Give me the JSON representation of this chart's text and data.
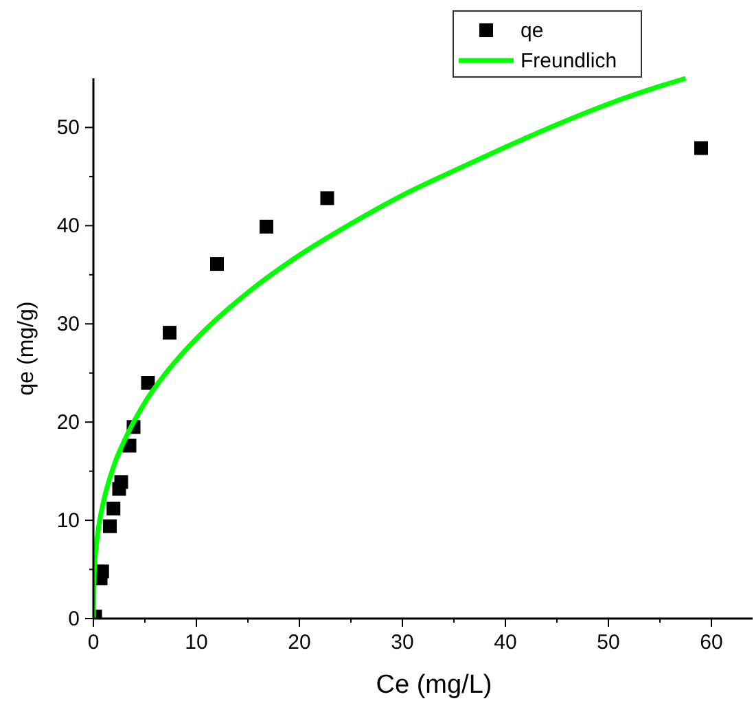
{
  "chart_data": {
    "type": "scatter",
    "xlabel": "Ce (mg/L)",
    "ylabel": "qe (mg/g)",
    "xlim": [
      0,
      64
    ],
    "ylim": [
      0,
      55
    ],
    "xticks": [
      0,
      {
        "value": 5,
        "label": null
      },
      10,
      {
        "value": 15,
        "label": null
      },
      20,
      {
        "value": 25,
        "label": null
      },
      30,
      {
        "value": 35,
        "label": null
      },
      40,
      {
        "value": 45,
        "label": null
      },
      50,
      {
        "value": 55,
        "label": null
      },
      60
    ],
    "yticks": [
      0,
      {
        "value": 5,
        "label": null
      },
      10,
      {
        "value": 15,
        "label": null
      },
      20,
      {
        "value": 25,
        "label": null
      },
      30,
      {
        "value": 35,
        "label": null
      },
      40,
      {
        "value": 45,
        "label": null
      },
      50
    ],
    "grid": false,
    "legend": "top right",
    "series": [
      {
        "name": "qe",
        "marker": "square",
        "color": "#000000",
        "x": [
          0.17,
          0.7,
          0.85,
          1.6,
          1.95,
          2.5,
          2.7,
          3.5,
          3.9,
          5.3,
          7.4,
          12.0,
          16.8,
          22.7,
          59.0
        ],
        "values": [
          0.2,
          4.1,
          4.8,
          9.4,
          11.2,
          13.2,
          13.9,
          17.6,
          19.5,
          24.0,
          29.1,
          36.1,
          39.9,
          42.8,
          47.9
        ]
      },
      {
        "name": "Freundlich",
        "type": "line",
        "marker": "none",
        "line_style": "solid",
        "color": "#00ff00",
        "x": [
          0,
          0.1,
          0.3,
          0.6,
          1,
          2,
          3,
          5,
          7.5,
          10,
          15,
          20,
          25,
          30,
          35,
          40,
          45,
          50,
          55,
          57.5
        ],
        "values": [
          0,
          5.0,
          7.6,
          9.9,
          12.0,
          15.6,
          18.1,
          22.0,
          25.6,
          28.5,
          33.2,
          37.0,
          40.2,
          43.1,
          45.6,
          48.0,
          50.3,
          52.4,
          54.2,
          55.0
        ]
      }
    ]
  }
}
